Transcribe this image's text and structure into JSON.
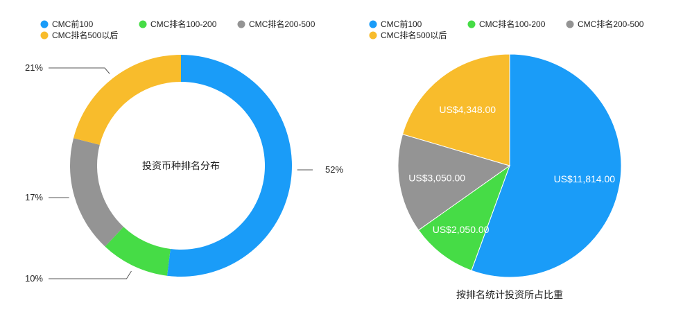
{
  "chart_data": [
    {
      "type": "donut",
      "title": "投资币种排名分布",
      "categories": [
        "CMC前100",
        "CMC排名100-200",
        "CMC排名200-500",
        "CMC排名500以后"
      ],
      "values": [
        52,
        10,
        17,
        21
      ],
      "data_labels": [
        "52%",
        "10%",
        "17%",
        "21%"
      ],
      "colors": [
        "#1a9cf8",
        "#46dc46",
        "#949494",
        "#f8bc2c"
      ],
      "legend_position": "top-left"
    },
    {
      "type": "pie",
      "caption": "按排名统计投资所占比重",
      "categories": [
        "CMC前100",
        "CMC排名100-200",
        "CMC排名200-500",
        "CMC排名500以后"
      ],
      "values": [
        11814.0,
        2050.0,
        3050.0,
        4348.0
      ],
      "data_labels": [
        "US$11,814.00",
        "US$2,050.00",
        "US$3,050.00",
        "US$4,348.00"
      ],
      "colors": [
        "#1a9cf8",
        "#46dc46",
        "#949494",
        "#f8bc2c"
      ],
      "legend_position": "top-left"
    }
  ]
}
